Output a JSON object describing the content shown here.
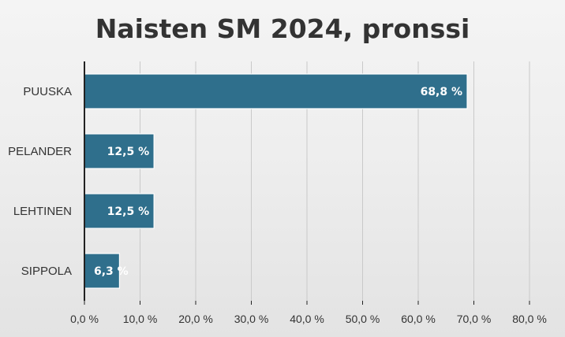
{
  "chart_data": {
    "type": "bar",
    "orientation": "horizontal",
    "title": "Naisten SM 2024, pronssi",
    "categories": [
      "PUUSKA",
      "PELANDER",
      "LEHTINEN",
      "SIPPOLA"
    ],
    "values": [
      68.8,
      12.5,
      12.5,
      6.3
    ],
    "data_labels": [
      "68,8 %",
      "12,5 %",
      "12,5 %",
      "6,3 %"
    ],
    "xticks": [
      "0,0 %",
      "10,0 %",
      "20,0 %",
      "30,0 %",
      "40,0 %",
      "50,0 %",
      "60,0 %",
      "70,0 %",
      "80,0 %"
    ],
    "xlim": [
      0,
      80
    ],
    "xlabel": "",
    "ylabel": "",
    "grid": "vertical",
    "legend": "none",
    "bar_color": "#2f6f8c"
  }
}
